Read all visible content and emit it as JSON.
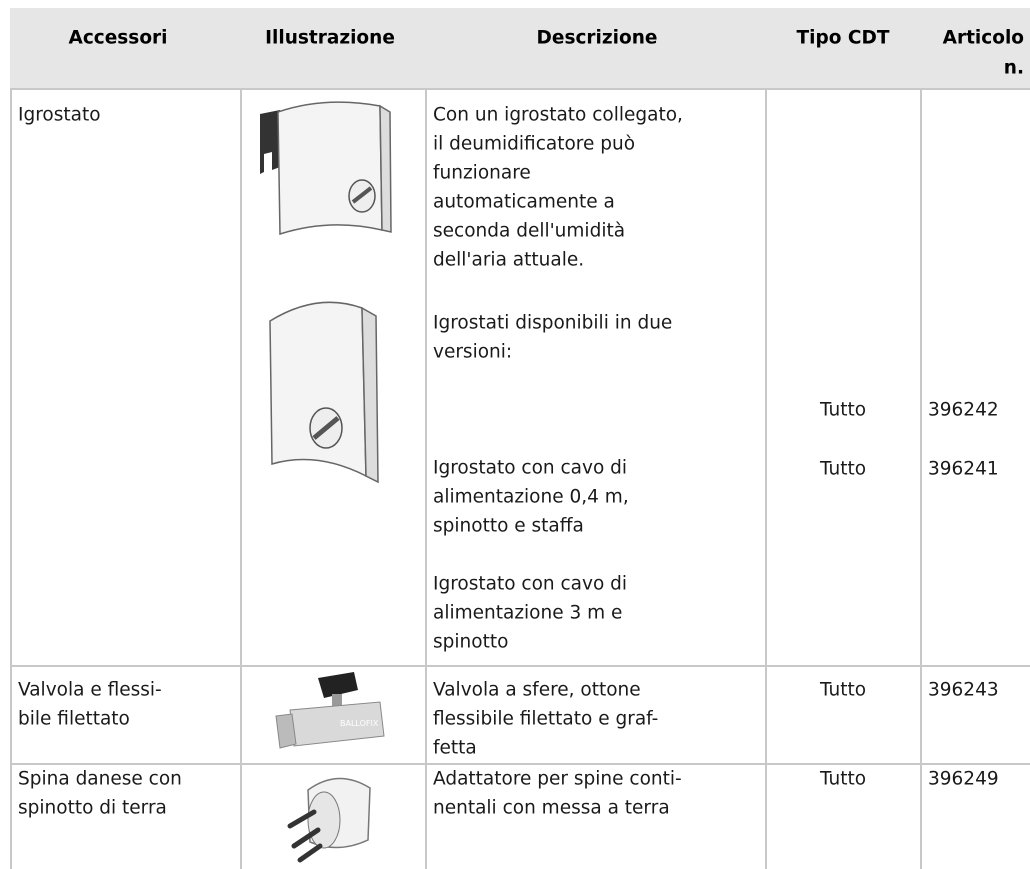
{
  "table": {
    "header": [
      [
        "Accessori"
      ],
      [
        "Illustrazione"
      ],
      [
        "Descrizione"
      ],
      [
        "Tipo CDT"
      ],
      [
        "Articolo",
        "n."
      ]
    ],
    "rows": [
      {
        "accessory": [
          "Igrostato"
        ],
        "description": [
          [
            "Con un igrostato collegato,",
            "il deumidificatore può",
            "funzionare",
            "automaticamente a",
            "seconda dell'umidità",
            "dell'aria attuale."
          ],
          [
            "Igrostati disponibili in due",
            "versioni:"
          ],
          [
            "Igrostato con cavo di",
            "alimentazione 0,4 m,",
            "spinotto e staffa"
          ],
          [
            "Igrostato con cavo di",
            "alimentazione 3 m e",
            "spinotto"
          ]
        ],
        "type": [
          "Tutto",
          "Tutto"
        ],
        "article": [
          "396242",
          "396241"
        ]
      },
      {
        "accessory": [
          "Valvola e flessi-",
          "bile filettato"
        ],
        "description": [
          [
            "Valvola a sfere, ottone",
            "flessibile filettato e graf-",
            "fetta"
          ]
        ],
        "type": [
          "Tutto"
        ],
        "article": [
          "396243"
        ]
      },
      {
        "accessory": [
          "Spina danese con",
          "spinotto di terra"
        ],
        "description": [
          [
            "Adattatore per spine conti-",
            "nentali con messa a terra"
          ]
        ],
        "type": [
          "Tutto"
        ],
        "article": [
          "396249"
        ]
      }
    ]
  }
}
